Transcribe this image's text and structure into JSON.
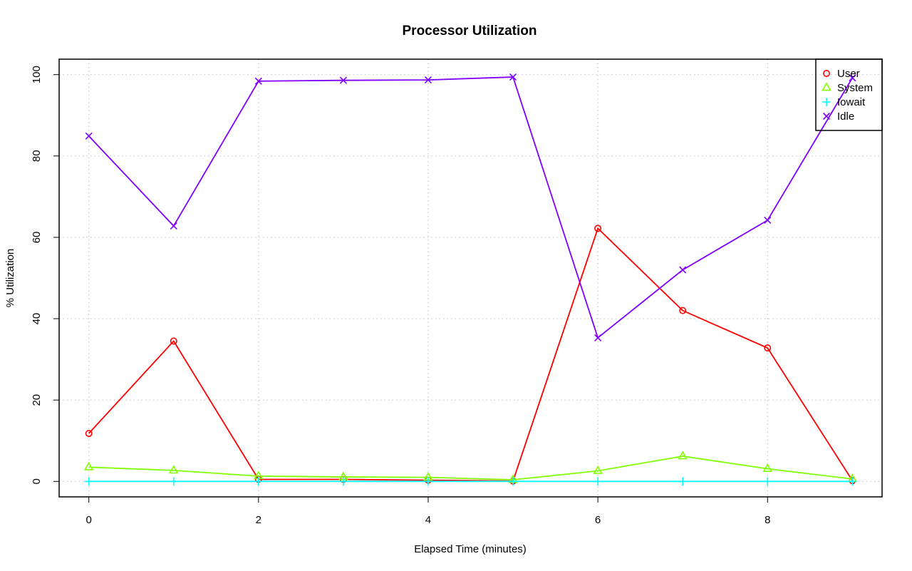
{
  "chart_data": {
    "type": "line",
    "title": "Processor Utilization",
    "xlabel": "Elapsed Time (minutes)",
    "ylabel": "% Utilization",
    "xlim": [
      -0.35,
      9.35
    ],
    "ylim": [
      -3.8,
      103.8
    ],
    "x_ticks": [
      "0",
      "2",
      "4",
      "6",
      "8"
    ],
    "y_ticks": [
      "0",
      "20",
      "40",
      "60",
      "80",
      "100"
    ],
    "grid": true,
    "legend_position": "top-right",
    "x": [
      0,
      1,
      2,
      3,
      4,
      5,
      6,
      7,
      8,
      9
    ],
    "series": [
      {
        "name": "User",
        "color": "#FF0000",
        "marker": "circle",
        "values": [
          11.8,
          34.5,
          0.5,
          0.5,
          0.3,
          0.1,
          62.2,
          42.0,
          32.8,
          0.2
        ]
      },
      {
        "name": "System",
        "color": "#80FF00",
        "marker": "triangle",
        "values": [
          3.5,
          2.7,
          1.3,
          1.1,
          1.0,
          0.4,
          2.6,
          6.2,
          3.1,
          0.6
        ]
      },
      {
        "name": "Iowait",
        "color": "#00FFFF",
        "marker": "plus",
        "values": [
          0.0,
          0.0,
          0.0,
          0.0,
          0.0,
          0.0,
          0.0,
          0.0,
          0.0,
          0.0
        ]
      },
      {
        "name": "Idle",
        "color": "#8000FF",
        "marker": "cross",
        "values": [
          84.9,
          62.8,
          98.4,
          98.6,
          98.7,
          99.4,
          35.3,
          52.0,
          64.2,
          99.2
        ]
      }
    ]
  }
}
